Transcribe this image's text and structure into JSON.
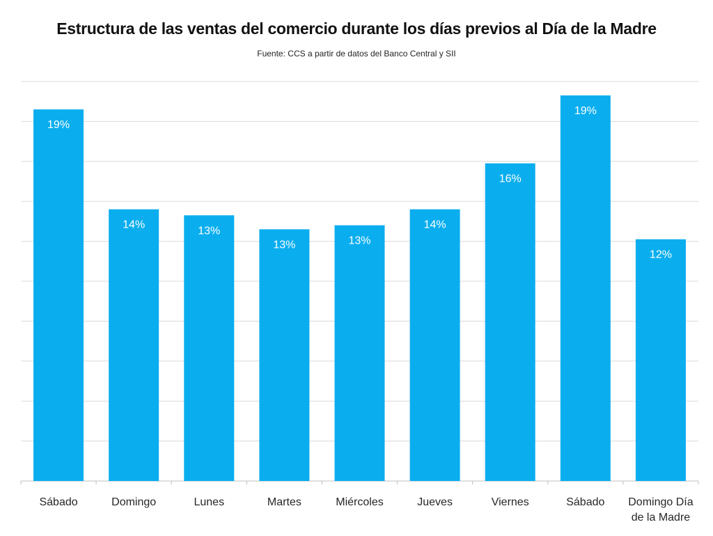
{
  "chart_data": {
    "type": "bar",
    "title": "Estructura de las ventas del comercio durante los días previos al Día de la Madre",
    "subtitle": "Fuente: CCS a partir de datos del Banco Central y SII",
    "categories": [
      [
        "Sábado"
      ],
      [
        "Domingo"
      ],
      [
        "Lunes"
      ],
      [
        "Martes"
      ],
      [
        "Miércoles"
      ],
      [
        "Jueves"
      ],
      [
        "Viernes"
      ],
      [
        "Sábado"
      ],
      [
        "Domingo Día",
        "de la Madre"
      ]
    ],
    "values": [
      18.6,
      13.6,
      13.3,
      12.6,
      12.8,
      13.6,
      15.9,
      19.3,
      12.1
    ],
    "data_labels": [
      "19%",
      "14%",
      "13%",
      "13%",
      "13%",
      "14%",
      "16%",
      "19%",
      "12%"
    ],
    "ylim": [
      0,
      20
    ],
    "gridlines": true,
    "legend": "none",
    "colors": {
      "bar": "#0AAEEF",
      "grid": "#d9d9d9",
      "axis": "#bfbfbf"
    }
  }
}
